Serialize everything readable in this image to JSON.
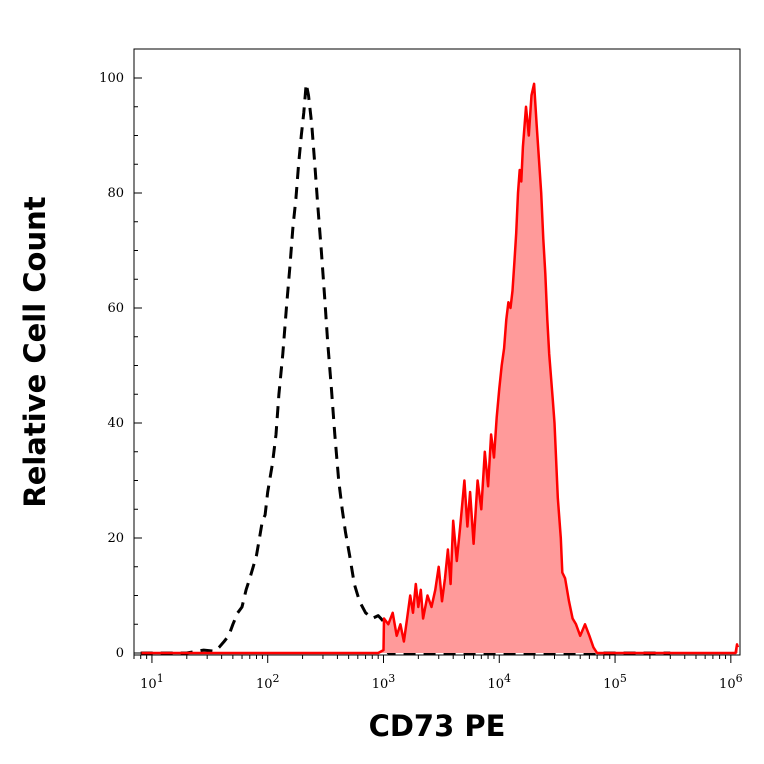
{
  "chart_data": {
    "type": "area",
    "xlabel": "CD73 PE",
    "ylabel": "Relative Cell Count",
    "x_scale": "log",
    "xlim": [
      7,
      1200000
    ],
    "ylim": [
      0,
      100
    ],
    "x_ticks": [
      {
        "value": 10,
        "base": "10",
        "exp": "1"
      },
      {
        "value": 100,
        "base": "10",
        "exp": "2"
      },
      {
        "value": 1000,
        "base": "10",
        "exp": "3"
      },
      {
        "value": 10000,
        "base": "10",
        "exp": "4"
      },
      {
        "value": 100000,
        "base": "10",
        "exp": "5"
      },
      {
        "value": 1000000,
        "base": "10",
        "exp": "6"
      }
    ],
    "y_ticks": [
      0,
      20,
      40,
      60,
      80,
      100
    ],
    "grid": false,
    "series": [
      {
        "style": "dashed",
        "color": "#000000",
        "filled": false,
        "points": [
          [
            8,
            0
          ],
          [
            20,
            0
          ],
          [
            28,
            0.5
          ],
          [
            35,
            0.3
          ],
          [
            38,
            1
          ],
          [
            42,
            2
          ],
          [
            46,
            3
          ],
          [
            50,
            5
          ],
          [
            55,
            7
          ],
          [
            60,
            8
          ],
          [
            65,
            11
          ],
          [
            70,
            13
          ],
          [
            75,
            15
          ],
          [
            80,
            17
          ],
          [
            85,
            20
          ],
          [
            90,
            23
          ],
          [
            95,
            24
          ],
          [
            100,
            28
          ],
          [
            110,
            33
          ],
          [
            118,
            38
          ],
          [
            125,
            45
          ],
          [
            135,
            52
          ],
          [
            145,
            60
          ],
          [
            155,
            67
          ],
          [
            165,
            74
          ],
          [
            175,
            79
          ],
          [
            185,
            85
          ],
          [
            195,
            90
          ],
          [
            205,
            94
          ],
          [
            215,
            99
          ],
          [
            225,
            97
          ],
          [
            240,
            92
          ],
          [
            255,
            85
          ],
          [
            270,
            78
          ],
          [
            290,
            70
          ],
          [
            310,
            62
          ],
          [
            330,
            54
          ],
          [
            355,
            46
          ],
          [
            380,
            38
          ],
          [
            410,
            30
          ],
          [
            440,
            25
          ],
          [
            470,
            21
          ],
          [
            510,
            17
          ],
          [
            560,
            12
          ],
          [
            620,
            9
          ],
          [
            700,
            7
          ],
          [
            800,
            6
          ],
          [
            900,
            6.5
          ],
          [
            950,
            6
          ],
          [
            1000,
            5.5
          ],
          [
            1050,
            2
          ],
          [
            1100,
            0
          ],
          [
            300000,
            0
          ]
        ]
      },
      {
        "style": "solid",
        "color": "#ff0000",
        "fill": "#ff9a9a",
        "filled": true,
        "points": [
          [
            8,
            0
          ],
          [
            900,
            0
          ],
          [
            1000,
            0.5
          ],
          [
            1010,
            6
          ],
          [
            1100,
            5
          ],
          [
            1200,
            7
          ],
          [
            1300,
            3
          ],
          [
            1400,
            5
          ],
          [
            1500,
            2
          ],
          [
            1600,
            6
          ],
          [
            1700,
            10
          ],
          [
            1800,
            7
          ],
          [
            1900,
            12
          ],
          [
            2000,
            8
          ],
          [
            2100,
            11
          ],
          [
            2200,
            6
          ],
          [
            2400,
            10
          ],
          [
            2600,
            8
          ],
          [
            2800,
            11
          ],
          [
            3000,
            15
          ],
          [
            3200,
            9
          ],
          [
            3400,
            13
          ],
          [
            3600,
            18
          ],
          [
            3800,
            12
          ],
          [
            4000,
            23
          ],
          [
            4300,
            16
          ],
          [
            4600,
            22
          ],
          [
            5000,
            30
          ],
          [
            5300,
            22
          ],
          [
            5600,
            28
          ],
          [
            6000,
            19
          ],
          [
            6500,
            30
          ],
          [
            7000,
            25
          ],
          [
            7500,
            35
          ],
          [
            8000,
            29
          ],
          [
            8500,
            38
          ],
          [
            9000,
            34
          ],
          [
            9500,
            41
          ],
          [
            10000,
            46
          ],
          [
            10500,
            50
          ],
          [
            11000,
            53
          ],
          [
            11500,
            58
          ],
          [
            12000,
            61
          ],
          [
            12500,
            60
          ],
          [
            13000,
            63
          ],
          [
            13500,
            68
          ],
          [
            14000,
            73
          ],
          [
            14500,
            80
          ],
          [
            15000,
            84
          ],
          [
            15500,
            82
          ],
          [
            16000,
            88
          ],
          [
            17000,
            95
          ],
          [
            18000,
            90
          ],
          [
            19000,
            97
          ],
          [
            20000,
            99
          ],
          [
            21000,
            92
          ],
          [
            22000,
            86
          ],
          [
            23000,
            80
          ],
          [
            24000,
            72
          ],
          [
            25000,
            66
          ],
          [
            26000,
            58
          ],
          [
            27000,
            52
          ],
          [
            28000,
            48
          ],
          [
            29000,
            44
          ],
          [
            30000,
            40
          ],
          [
            32000,
            27
          ],
          [
            34000,
            20
          ],
          [
            35000,
            14
          ],
          [
            37000,
            13
          ],
          [
            40000,
            9
          ],
          [
            43000,
            6
          ],
          [
            46000,
            5
          ],
          [
            50000,
            3
          ],
          [
            55000,
            5
          ],
          [
            60000,
            3
          ],
          [
            65000,
            1
          ],
          [
            70000,
            0
          ],
          [
            1100000,
            0
          ],
          [
            1130000,
            1.5
          ],
          [
            1150000,
            1
          ]
        ]
      }
    ]
  }
}
